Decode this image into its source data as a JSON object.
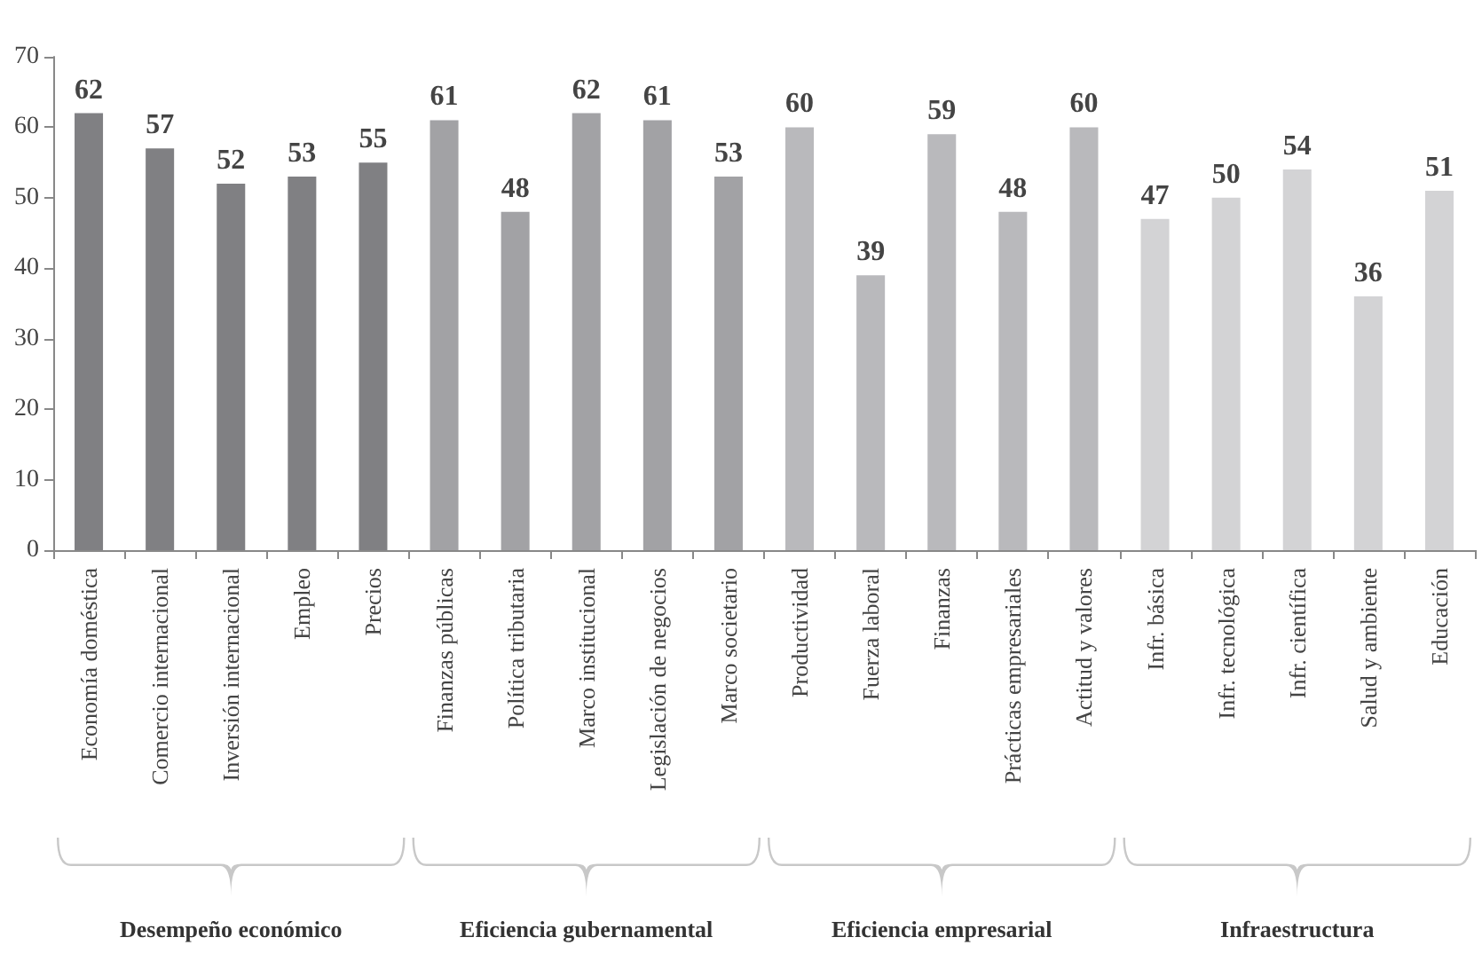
{
  "chart_data": {
    "type": "bar",
    "categories": [
      "Economía doméstica",
      "Comercio internacional",
      "Inversión internacional",
      "Empleo",
      "Precios",
      "Finanzas públicas",
      "Política tributaria",
      "Marco institucional",
      "Legislación de negocios",
      "Marco societario",
      "Productividad",
      "Fuerza laboral",
      "Finanzas",
      "Prácticas empresariales",
      "Actitud y valores",
      "Infr. básica",
      "Infr. tecnológica",
      "Infr. científica",
      "Salud y ambiente",
      "Educación"
    ],
    "values": [
      62,
      57,
      52,
      53,
      55,
      61,
      48,
      62,
      61,
      53,
      60,
      39,
      59,
      48,
      60,
      47,
      50,
      54,
      36,
      51
    ],
    "colors": [
      "#808083",
      "#808083",
      "#808083",
      "#808083",
      "#808083",
      "#a2a2a5",
      "#a2a2a5",
      "#a2a2a5",
      "#a2a2a5",
      "#a2a2a5",
      "#b9b9bc",
      "#b9b9bc",
      "#b9b9bc",
      "#b9b9bc",
      "#b9b9bc",
      "#d3d3d5",
      "#d3d3d5",
      "#d3d3d5",
      "#d3d3d5",
      "#d3d3d5"
    ],
    "annotations": [
      "Desempeño económico",
      "Eficiencia gubernamental",
      "Eficiencia empresarial",
      "Infraestructura"
    ],
    "ylim": [
      0,
      70
    ],
    "yticks": [
      0,
      10,
      20,
      30,
      40,
      50,
      60,
      70
    ],
    "grid": false,
    "data_labels": true
  }
}
